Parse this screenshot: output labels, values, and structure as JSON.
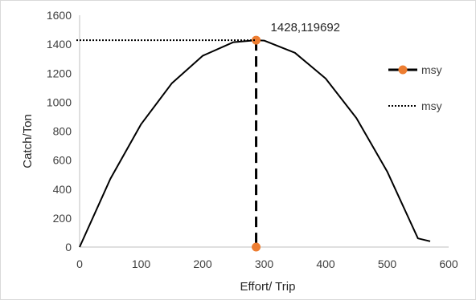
{
  "chart_data": {
    "type": "line",
    "xlabel": "Effort/ Trip",
    "ylabel": "Catch/Ton",
    "xlim": [
      0,
      600
    ],
    "ylim": [
      0,
      1600
    ],
    "x_ticks": [
      0,
      100,
      200,
      300,
      400,
      500,
      600
    ],
    "y_ticks": [
      0,
      200,
      400,
      600,
      800,
      1000,
      1200,
      1400,
      1600
    ],
    "grid": false,
    "legend_position": "right",
    "curve": {
      "description": "parabolic catch-effort curve",
      "x": [
        0,
        50,
        100,
        150,
        200,
        250,
        287,
        300,
        350,
        400,
        450,
        500,
        550,
        570
      ],
      "y": [
        0,
        471,
        848,
        1131,
        1320,
        1414,
        1428,
        1425,
        1341,
        1163,
        890,
        522,
        60,
        40
      ],
      "color": "#000000"
    },
    "series": [
      {
        "name": "msy",
        "style": "dashed-with-markers",
        "points": [
          {
            "x": 287,
            "y": 1428
          },
          {
            "x": 287,
            "y": 0
          }
        ],
        "line_color": "#000000",
        "marker_color": "#ED7D31"
      },
      {
        "name": "msy",
        "style": "dotted",
        "points": [
          {
            "x": 0,
            "y": 1428
          },
          {
            "x": 287,
            "y": 1428
          }
        ],
        "line_color": "#000000"
      }
    ],
    "annotations": [
      {
        "text": "1428,119692",
        "x": 287,
        "y": 1428
      }
    ]
  }
}
